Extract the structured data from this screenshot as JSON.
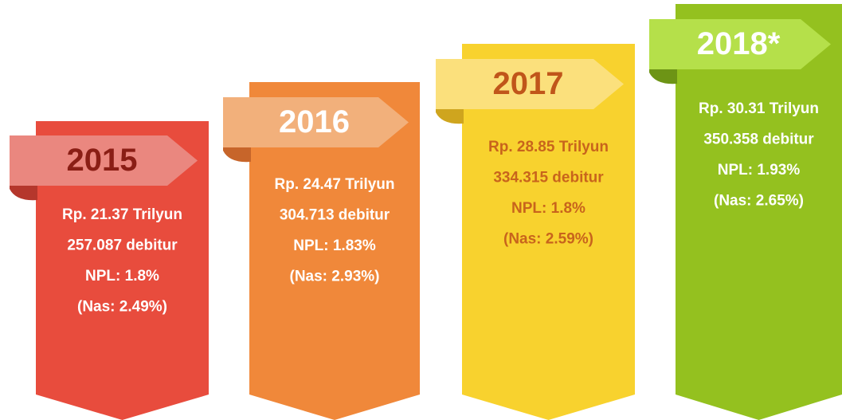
{
  "columns": [
    {
      "year": "2015",
      "lines": [
        "Rp. 21.37 Trilyun",
        "257.087 debitur",
        "NPL: 1.8%",
        "(Nas: 2.49%)"
      ]
    },
    {
      "year": "2016",
      "lines": [
        "Rp. 24.47 Trilyun",
        "304.713 debitur",
        "NPL: 1.83%",
        "(Nas: 2.93%)"
      ]
    },
    {
      "year": "2017",
      "lines": [
        "Rp. 28.85 Trilyun",
        "334.315 debitur",
        "NPL: 1.8%",
        "(Nas: 2.59%)"
      ]
    },
    {
      "year": "2018*",
      "lines": [
        "Rp. 30.31 Trilyun",
        "350.358 debitur",
        "NPL: 1.93%",
        "(Nas: 2.65%)"
      ]
    }
  ]
}
